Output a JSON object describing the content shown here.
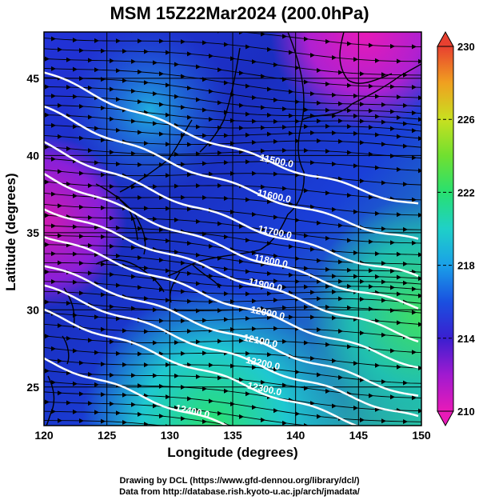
{
  "title": "MSM 15Z22Mar2024 (200.0hPa)",
  "xlabel": "Longitude (degrees)",
  "ylabel": "Latitude  (degrees)",
  "credits": [
    "Drawing by DCL (https://www.gfd-dennou.org/library/dcl/)",
    "Data from http://database.rish.kyoto-u.ac.jp/arch/jmadata/"
  ],
  "map": {
    "lon_range": [
      120,
      150
    ],
    "lat_range": [
      22.5,
      48
    ],
    "lon_ticks": [
      "120",
      "125",
      "130",
      "135",
      "140",
      "145",
      "150"
    ],
    "lat_ticks": [
      "25",
      "30",
      "35",
      "40",
      "45"
    ],
    "contours": [
      {
        "label": "11500.0"
      },
      {
        "label": "11600.0"
      },
      {
        "label": "11700.0"
      },
      {
        "label": "11800.0"
      },
      {
        "label": "11900.0"
      },
      {
        "label": "12000.0"
      },
      {
        "label": "12100.0"
      },
      {
        "label": "12200.0"
      },
      {
        "label": "12300.0"
      },
      {
        "label": "12400.0"
      }
    ]
  },
  "colorbar": {
    "range": [
      210,
      230
    ],
    "ticks": [
      "210",
      "214",
      "218",
      "222",
      "226",
      "230"
    ],
    "colors": [
      "#e81ab8",
      "#8a1fd8",
      "#2a1fc8",
      "#1a5fe8",
      "#1fc8e8",
      "#2ae070",
      "#90e020",
      "#e8e820",
      "#f0a020",
      "#e84020"
    ]
  }
}
